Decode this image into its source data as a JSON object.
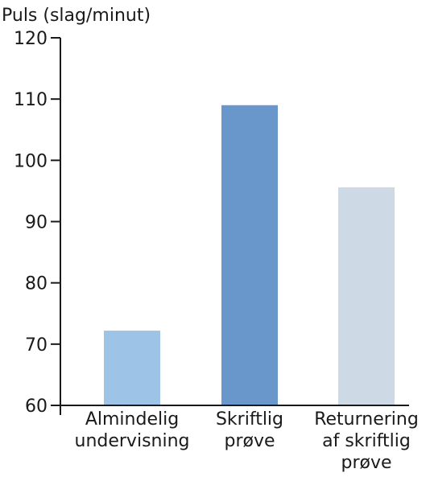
{
  "chart_data": {
    "type": "bar",
    "title": "",
    "ylabel": "Puls (slag/minut)",
    "xlabel": "",
    "ylim": [
      60,
      120
    ],
    "yticks": [
      60,
      70,
      80,
      90,
      100,
      110,
      120
    ],
    "grid": false,
    "categories": [
      [
        "Almindelig",
        "undervisning"
      ],
      [
        "Skriftlig",
        "prøve"
      ],
      [
        "Returnering",
        "af skriftlig",
        "prøve"
      ]
    ],
    "values": [
      72.2,
      109,
      95.6
    ],
    "colors": [
      "#9dc3e6",
      "#6a97cb",
      "#cdd9e4"
    ]
  },
  "axis_color": "#1a1a1a"
}
